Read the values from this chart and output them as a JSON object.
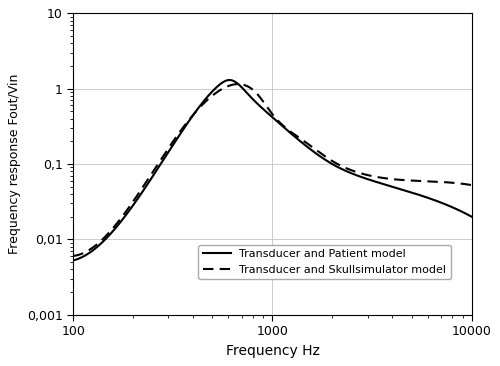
{
  "title": "",
  "xlabel": "Frequency Hz",
  "ylabel": "Frequency response Fout/Vin",
  "xlim": [
    100,
    10000
  ],
  "ylim": [
    0.001,
    10
  ],
  "legend_solid": "Transducer and Patient model",
  "legend_dashed": "Transducer and Skullsimulator model",
  "solid_color": "#000000",
  "dashed_color": "#000000",
  "background_color": "#ffffff",
  "grid_color": "#cccccc",
  "line_width": 1.5,
  "solid_points_logf": [
    2.0,
    2.3,
    2.55,
    2.72,
    2.79,
    2.88,
    3.0,
    3.15,
    3.3,
    3.5,
    3.7,
    4.0
  ],
  "solid_points_logmag": [
    -2.28,
    -1.55,
    -0.55,
    0.02,
    0.114,
    -0.08,
    -0.38,
    -0.72,
    -1.0,
    -1.22,
    -1.38,
    -1.7
  ],
  "dashed_points_logf": [
    2.0,
    2.3,
    2.55,
    2.75,
    2.83,
    2.92,
    3.0,
    3.15,
    3.3,
    3.5,
    3.7,
    4.0
  ],
  "dashed_points_logmag": [
    -2.22,
    -1.5,
    -0.52,
    0.0,
    0.061,
    -0.06,
    -0.34,
    -0.68,
    -0.96,
    -1.16,
    -1.22,
    -1.28
  ],
  "ytick_labels": [
    "0,001",
    "0,01",
    "0,1",
    "1",
    "10"
  ],
  "ytick_vals": [
    0.001,
    0.01,
    0.1,
    1,
    10
  ],
  "xtick_labels": [
    "100",
    "1000",
    "10000"
  ],
  "xtick_vals": [
    100,
    1000,
    10000
  ]
}
